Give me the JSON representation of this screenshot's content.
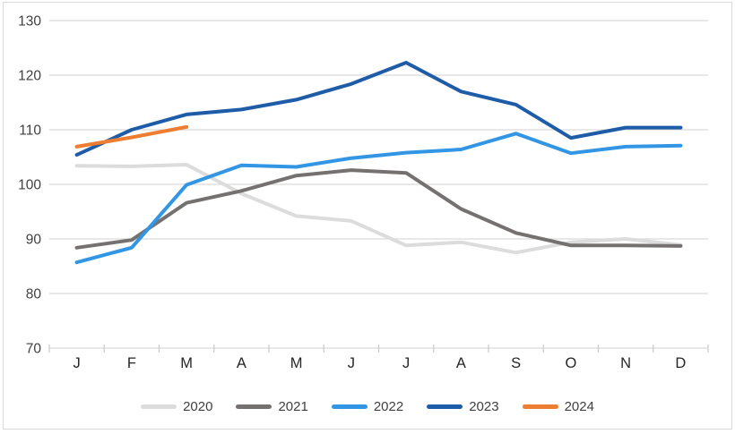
{
  "chart_data": {
    "type": "line",
    "title": "",
    "categories": [
      "J",
      "F",
      "M",
      "A",
      "M",
      "J",
      "J",
      "A",
      "S",
      "O",
      "N",
      "D"
    ],
    "series": [
      {
        "name": "2020",
        "color": "#DCDCDC",
        "values": [
          103.4,
          103.3,
          103.6,
          98.3,
          94.2,
          93.3,
          88.8,
          89.4,
          87.5,
          89.4,
          90.0,
          88.9
        ]
      },
      {
        "name": "2021",
        "color": "#767171",
        "values": [
          88.4,
          89.8,
          96.6,
          98.8,
          101.6,
          102.6,
          102.1,
          95.5,
          91.1,
          88.8,
          88.8,
          88.7
        ]
      },
      {
        "name": "2022",
        "color": "#3296E4",
        "values": [
          85.7,
          88.4,
          99.9,
          103.5,
          103.2,
          104.8,
          105.8,
          106.4,
          109.3,
          105.7,
          106.9,
          107.1
        ]
      },
      {
        "name": "2023",
        "color": "#1E5CA8",
        "values": [
          105.4,
          110.0,
          112.8,
          113.7,
          115.5,
          118.4,
          122.3,
          117.0,
          114.6,
          108.5,
          110.4,
          110.4
        ]
      },
      {
        "name": "2024",
        "color": "#ED7D31",
        "values": [
          106.9,
          108.6,
          110.5,
          null,
          null,
          null,
          null,
          null,
          null,
          null,
          null,
          null
        ]
      }
    ],
    "xlabel": "",
    "ylabel": "",
    "ylim": [
      70,
      130
    ],
    "yticks": [
      130,
      120,
      110,
      100,
      90,
      80,
      70
    ],
    "grid": "horizontal",
    "legend_position": "bottom",
    "colors": {
      "gridline": "#D9D9D9",
      "axis_line": "#D9D9D9",
      "tick_mark": "#C9C9C9",
      "y_label": "#404040",
      "x_label": "#262626",
      "legend_text": "#404040",
      "background": "#FFFFFF",
      "frame_border": "#D9D9D9"
    }
  }
}
